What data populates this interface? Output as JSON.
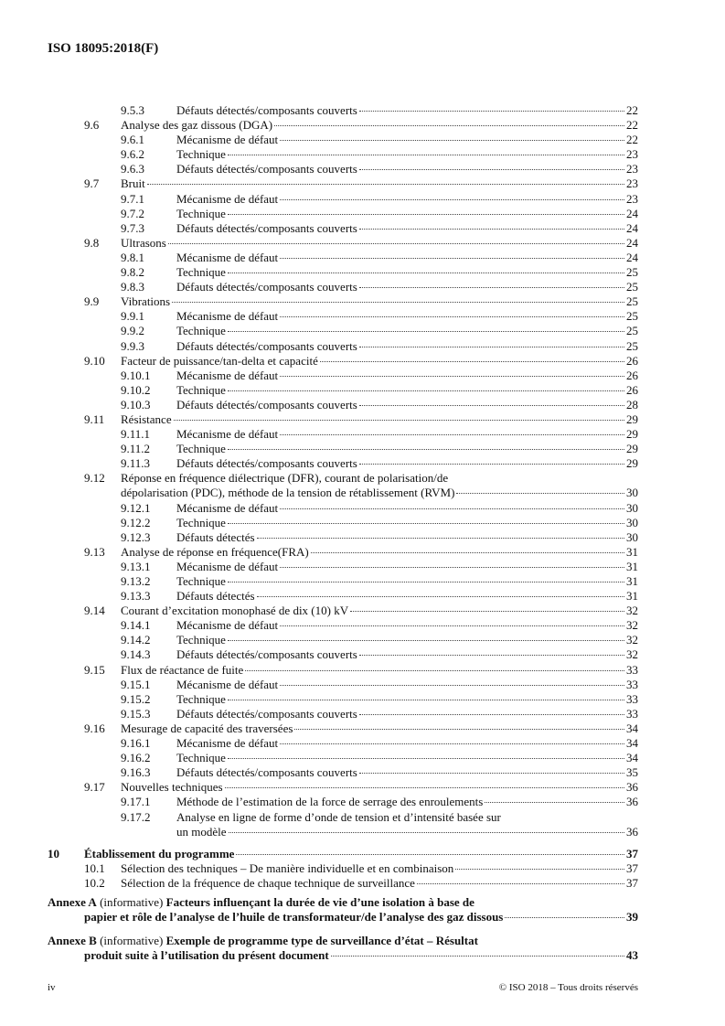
{
  "header": {
    "doc_id": "ISO 18095:2018(F)"
  },
  "toc": [
    {
      "level": 2,
      "num": "9.5.3",
      "title": "Défauts détectés/composants couverts",
      "page": "22"
    },
    {
      "level": 1,
      "num": "9.6",
      "title": "Analyse des gaz dissous (DGA)",
      "page": "22"
    },
    {
      "level": 2,
      "num": "9.6.1",
      "title": "Mécanisme de défaut",
      "page": "22"
    },
    {
      "level": 2,
      "num": "9.6.2",
      "title": "Technique",
      "page": "23"
    },
    {
      "level": 2,
      "num": "9.6.3",
      "title": "Défauts détectés/composants couverts",
      "page": "23"
    },
    {
      "level": 1,
      "num": "9.7",
      "title": "Bruit",
      "page": "23"
    },
    {
      "level": 2,
      "num": "9.7.1",
      "title": "Mécanisme de défaut",
      "page": "23"
    },
    {
      "level": 2,
      "num": "9.7.2",
      "title": "Technique",
      "page": "24"
    },
    {
      "level": 2,
      "num": "9.7.3",
      "title": "Défauts détectés/composants couverts",
      "page": "24"
    },
    {
      "level": 1,
      "num": "9.8",
      "title": "Ultrasons",
      "page": "24"
    },
    {
      "level": 2,
      "num": "9.8.1",
      "title": "Mécanisme de défaut",
      "page": "24"
    },
    {
      "level": 2,
      "num": "9.8.2",
      "title": "Technique",
      "page": "25"
    },
    {
      "level": 2,
      "num": "9.8.3",
      "title": "Défauts détectés/composants couverts",
      "page": "25"
    },
    {
      "level": 1,
      "num": "9.9",
      "title": "Vibrations",
      "page": "25"
    },
    {
      "level": 2,
      "num": "9.9.1",
      "title": "Mécanisme de défaut",
      "page": "25"
    },
    {
      "level": 2,
      "num": "9.9.2",
      "title": "Technique",
      "page": "25"
    },
    {
      "level": 2,
      "num": "9.9.3",
      "title": "Défauts détectés/composants couverts",
      "page": "25"
    },
    {
      "level": 1,
      "num": "9.10",
      "title": "Facteur de puissance/tan-delta et capacité",
      "page": "26"
    },
    {
      "level": 2,
      "num": "9.10.1",
      "title": "Mécanisme de défaut",
      "page": "26"
    },
    {
      "level": 2,
      "num": "9.10.2",
      "title": "Technique",
      "page": "26"
    },
    {
      "level": 2,
      "num": "9.10.3",
      "title": "Défauts détectés/composants couverts",
      "page": "28"
    },
    {
      "level": 1,
      "num": "9.11",
      "title": "Résistance",
      "page": "29"
    },
    {
      "level": 2,
      "num": "9.11.1",
      "title": "Mécanisme de défaut",
      "page": "29"
    },
    {
      "level": 2,
      "num": "9.11.2",
      "title": "Technique",
      "page": "29"
    },
    {
      "level": 2,
      "num": "9.11.3",
      "title": "Défauts détectés/composants couverts",
      "page": "29"
    },
    {
      "level": 1,
      "num": "9.12",
      "title": "Réponse en fréquence diélectrique (DFR), courant de polarisation/de",
      "title2": "dépolarisation (PDC), méthode de la tension de rétablissement (RVM)",
      "page": "30"
    },
    {
      "level": 2,
      "num": "9.12.1",
      "title": "Mécanisme de défaut",
      "page": "30"
    },
    {
      "level": 2,
      "num": "9.12.2",
      "title": "Technique",
      "page": "30"
    },
    {
      "level": 2,
      "num": "9.12.3",
      "title": "Défauts détectés",
      "page": "30"
    },
    {
      "level": 1,
      "num": "9.13",
      "title": "Analyse de réponse en fréquence(FRA)",
      "page": "31"
    },
    {
      "level": 2,
      "num": "9.13.1",
      "title": "Mécanisme de défaut",
      "page": "31"
    },
    {
      "level": 2,
      "num": "9.13.2",
      "title": "Technique",
      "page": "31"
    },
    {
      "level": 2,
      "num": "9.13.3",
      "title": "Défauts détectés",
      "page": "31"
    },
    {
      "level": 1,
      "num": "9.14",
      "title": "Courant d’excitation monophasé de dix (10) kV",
      "page": "32"
    },
    {
      "level": 2,
      "num": "9.14.1",
      "title": "Mécanisme de défaut",
      "page": "32"
    },
    {
      "level": 2,
      "num": "9.14.2",
      "title": "Technique",
      "page": "32"
    },
    {
      "level": 2,
      "num": "9.14.3",
      "title": "Défauts détectés/composants couverts",
      "page": "32"
    },
    {
      "level": 1,
      "num": "9.15",
      "title": "Flux de réactance de fuite",
      "page": "33"
    },
    {
      "level": 2,
      "num": "9.15.1",
      "title": "Mécanisme de défaut",
      "page": "33"
    },
    {
      "level": 2,
      "num": "9.15.2",
      "title": "Technique",
      "page": "33"
    },
    {
      "level": 2,
      "num": "9.15.3",
      "title": "Défauts détectés/composants couverts",
      "page": "33"
    },
    {
      "level": 1,
      "num": "9.16",
      "title": "Mesurage de capacité des traversées",
      "page": "34"
    },
    {
      "level": 2,
      "num": "9.16.1",
      "title": "Mécanisme de défaut",
      "page": "34"
    },
    {
      "level": 2,
      "num": "9.16.2",
      "title": "Technique",
      "page": "34"
    },
    {
      "level": 2,
      "num": "9.16.3",
      "title": "Défauts détectés/composants couverts",
      "page": "35"
    },
    {
      "level": 1,
      "num": "9.17",
      "title": "Nouvelles techniques",
      "page": "36"
    },
    {
      "level": 2,
      "num": "9.17.1",
      "title": "Méthode de l’estimation de la force de serrage des enroulements",
      "page": "36"
    },
    {
      "level": 2,
      "num": "9.17.2",
      "title": "Analyse en ligne de forme d’onde de tension et d’intensité basée sur",
      "title2": "un modèle",
      "page": "36"
    },
    {
      "level": 0,
      "num": "10",
      "title": "Établissement du programme",
      "page": "37"
    },
    {
      "level": 1,
      "num": "10.1",
      "title": "Sélection des techniques – De manière individuelle et en combinaison",
      "page": "37"
    },
    {
      "level": 1,
      "num": "10.2",
      "title": "Sélection de la fréquence de chaque technique de surveillance",
      "page": "37"
    }
  ],
  "annexes": [
    {
      "label": "Annexe A",
      "kind": "(informative)",
      "title": "Facteurs influençant la durée de vie d’une isolation à base de",
      "title2": "papier et rôle de l’analyse de l’huile de transformateur/de l’analyse des gaz dissous",
      "page": "39"
    },
    {
      "label": "Annexe B",
      "kind": "(informative)",
      "title": "Exemple de programme type de surveillance d’état – Résultat",
      "title2": "produit suite à l’utilisation du présent document",
      "page": "43"
    }
  ],
  "footer": {
    "page_number": "iv",
    "copyright": "© ISO 2018 – Tous droits réservés"
  }
}
